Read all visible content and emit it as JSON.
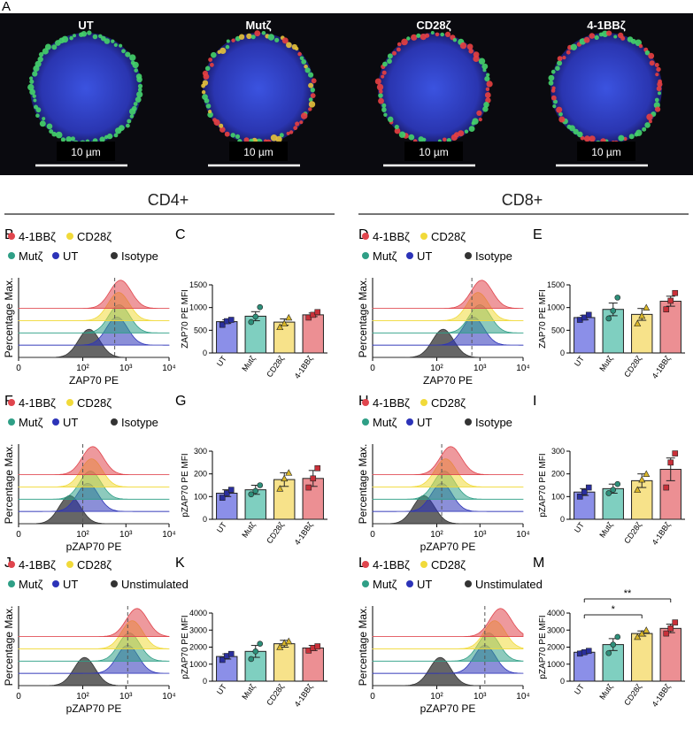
{
  "panel_a": {
    "letter": "A",
    "scale_text": "10 µm",
    "cells": [
      "UT",
      "Mutζ",
      "CD28ζ",
      "4-1BBζ"
    ]
  },
  "colors": {
    "bbz": "#e0454d",
    "cd28": "#f1da3a",
    "mut": "#2f9f86",
    "ut": "#2c33b8",
    "iso": "#333333",
    "bar_ut": "#8b8fe8",
    "bar_mut": "#7fcfc0",
    "bar_cd28": "#f7e28a",
    "bar_bbz": "#ec8f93"
  },
  "sections": {
    "cd4": "CD4+",
    "cd8": "CD8+"
  },
  "common": {
    "hist_ylabel": "Percentage Max.",
    "hist_xticks": [
      "0",
      "10²",
      "10³",
      "10⁴"
    ],
    "bar_categories": [
      "UT",
      "Mutζ",
      "CD28ζ",
      "4-1BBζ"
    ]
  },
  "chart_data": [
    {
      "type": "area",
      "panel": "B",
      "legend": [
        "4-1BBζ",
        "CD28ζ",
        "Mutζ",
        "UT",
        "Isotype"
      ],
      "xlabel": "ZAP70 PE",
      "ylabel": "Percentage Max.",
      "xscale": "biexponential",
      "xticks": [
        "0",
        "10²",
        "10³",
        "10⁴"
      ],
      "series": [
        {
          "name": "4-1BBζ",
          "peak": 750
        },
        {
          "name": "CD28ζ",
          "peak": 680
        },
        {
          "name": "Mutζ",
          "peak": 700
        },
        {
          "name": "UT",
          "peak": 620
        },
        {
          "name": "Isotype",
          "peak": 140
        }
      ],
      "dashed_line_x": 550
    },
    {
      "type": "bar",
      "panel": "C",
      "title": "",
      "ylabel": "ZAP70 PE MFI",
      "categories": [
        "UT",
        "Mutζ",
        "CD28ζ",
        "4-1BBζ"
      ],
      "values": [
        690,
        810,
        680,
        840
      ],
      "errors": [
        40,
        100,
        70,
        40
      ],
      "points": [
        [
          620,
          700,
          730
        ],
        [
          680,
          800,
          1010
        ],
        [
          570,
          650,
          780
        ],
        [
          780,
          840,
          900
        ]
      ],
      "ylim": [
        0,
        1500
      ],
      "yticks": [
        "0",
        "500",
        "1000",
        "1500"
      ]
    },
    {
      "type": "area",
      "panel": "D",
      "legend": [
        "4-1BBζ",
        "CD28ζ",
        "Mutζ",
        "UT",
        "Isotype"
      ],
      "xlabel": "ZAP70 PE",
      "ylabel": "Percentage Max.",
      "xscale": "biexponential",
      "xticks": [
        "0",
        "10²",
        "10³",
        "10⁴"
      ],
      "series": [
        {
          "name": "4-1BBζ",
          "peak": 1100
        },
        {
          "name": "CD28ζ",
          "peak": 900
        },
        {
          "name": "Mutζ",
          "peak": 1000
        },
        {
          "name": "UT",
          "peak": 700
        },
        {
          "name": "Isotype",
          "peak": 140
        }
      ],
      "dashed_line_x": 650
    },
    {
      "type": "bar",
      "panel": "E",
      "title": "",
      "ylabel": "ZAP70 PE MFI",
      "categories": [
        "UT",
        "Mutζ",
        "CD28ζ",
        "4-1BBζ"
      ],
      "values": [
        780,
        960,
        850,
        1140
      ],
      "errors": [
        50,
        140,
        130,
        110
      ],
      "points": [
        [
          730,
          780,
          840
        ],
        [
          760,
          930,
          1220
        ],
        [
          650,
          820,
          1000
        ],
        [
          960,
          1150,
          1320
        ]
      ],
      "ylim": [
        0,
        1500
      ],
      "yticks": [
        "0",
        "500",
        "1000",
        "1500"
      ]
    },
    {
      "type": "area",
      "panel": "F",
      "legend": [
        "4-1BBζ",
        "CD28ζ",
        "Mutζ",
        "UT",
        "Isotype"
      ],
      "xlabel": "pZAP70 PE",
      "ylabel": "Percentage Max.",
      "xscale": "biexponential",
      "xticks": [
        "0",
        "10²",
        "10³",
        "10⁴"
      ],
      "series": [
        {
          "name": "4-1BBζ",
          "peak": 170
        },
        {
          "name": "CD28ζ",
          "peak": 160
        },
        {
          "name": "Mutζ",
          "peak": 150
        },
        {
          "name": "UT",
          "peak": 130
        },
        {
          "name": "Isotype",
          "peak": 50
        }
      ],
      "dashed_line_x": 100
    },
    {
      "type": "bar",
      "panel": "G",
      "title": "",
      "ylabel": "pZAP70 PE MFI",
      "categories": [
        "UT",
        "Mutζ",
        "CD28ζ",
        "4-1BBζ"
      ],
      "values": [
        115,
        130,
        175,
        180
      ],
      "errors": [
        15,
        20,
        30,
        35
      ],
      "points": [
        [
          95,
          115,
          130
        ],
        [
          110,
          125,
          150
        ],
        [
          135,
          180,
          205
        ],
        [
          140,
          180,
          225
        ]
      ],
      "ylim": [
        0,
        300
      ],
      "yticks": [
        "0",
        "100",
        "200",
        "300"
      ]
    },
    {
      "type": "area",
      "panel": "H",
      "legend": [
        "4-1BBζ",
        "CD28ζ",
        "Mutζ",
        "UT",
        "Isotype"
      ],
      "xlabel": "pZAP70 PE",
      "ylabel": "Percentage Max.",
      "xscale": "biexponential",
      "xticks": [
        "0",
        "10²",
        "10³",
        "10⁴"
      ],
      "series": [
        {
          "name": "4-1BBζ",
          "peak": 210
        },
        {
          "name": "CD28ζ",
          "peak": 160
        },
        {
          "name": "Mutζ",
          "peak": 150
        },
        {
          "name": "UT",
          "peak": 130
        },
        {
          "name": "Isotype",
          "peak": 50
        }
      ],
      "dashed_line_x": 130
    },
    {
      "type": "bar",
      "panel": "I",
      "title": "",
      "ylabel": "pZAP70 PE MFI",
      "categories": [
        "UT",
        "Mutζ",
        "CD28ζ",
        "4-1BBζ"
      ],
      "values": [
        120,
        135,
        170,
        220
      ],
      "errors": [
        15,
        20,
        30,
        50
      ],
      "points": [
        [
          100,
          120,
          140
        ],
        [
          115,
          130,
          155
        ],
        [
          130,
          175,
          200
        ],
        [
          140,
          250,
          290
        ]
      ],
      "ylim": [
        0,
        300
      ],
      "yticks": [
        "0",
        "100",
        "200",
        "300"
      ]
    },
    {
      "type": "area",
      "panel": "J",
      "legend": [
        "4-1BBζ",
        "CD28ζ",
        "Mutζ",
        "UT",
        "Unstimulated"
      ],
      "xlabel": "pZAP70 PE",
      "ylabel": "Percentage Max.",
      "xscale": "biexponential",
      "xticks": [
        "0",
        "10²",
        "10³",
        "10⁴"
      ],
      "series": [
        {
          "name": "4-1BBζ",
          "peak": 1800
        },
        {
          "name": "CD28ζ",
          "peak": 1400
        },
        {
          "name": "Mutζ",
          "peak": 1200
        },
        {
          "name": "UT",
          "peak": 1100
        },
        {
          "name": "Unstimulated",
          "peak": 110
        }
      ],
      "dashed_line_x": 1100
    },
    {
      "type": "bar",
      "panel": "K",
      "title": "",
      "ylabel": "pZAP70 PE MFI",
      "categories": [
        "UT",
        "Mutζ",
        "CD28ζ",
        "4-1BBζ"
      ],
      "values": [
        1450,
        1750,
        2200,
        1950
      ],
      "errors": [
        150,
        350,
        200,
        150
      ],
      "points": [
        [
          1250,
          1480,
          1600
        ],
        [
          1300,
          1750,
          2200
        ],
        [
          2000,
          2250,
          2350
        ],
        [
          1800,
          1950,
          2050
        ]
      ],
      "ylim": [
        0,
        4000
      ],
      "yticks": [
        "0",
        "1000",
        "2000",
        "3000",
        "4000"
      ]
    },
    {
      "type": "area",
      "panel": "L",
      "legend": [
        "4-1BBζ",
        "CD28ζ",
        "Mutζ",
        "UT",
        "Unstimulated"
      ],
      "xlabel": "pZAP70 PE",
      "ylabel": "Percentage Max.",
      "xscale": "biexponential",
      "xticks": [
        "0",
        "10²",
        "10³",
        "10⁴"
      ],
      "series": [
        {
          "name": "4-1BBζ",
          "peak": 3000
        },
        {
          "name": "CD28ζ",
          "peak": 2200
        },
        {
          "name": "Mutζ",
          "peak": 1600
        },
        {
          "name": "UT",
          "peak": 1300
        },
        {
          "name": "Unstimulated",
          "peak": 120
        }
      ],
      "dashed_line_x": 1300
    },
    {
      "type": "bar",
      "panel": "M",
      "title": "",
      "ylabel": "pZAP70 PE MFI",
      "categories": [
        "UT",
        "Mutζ",
        "CD28ζ",
        "4-1BBζ"
      ],
      "values": [
        1700,
        2150,
        2800,
        3100
      ],
      "errors": [
        80,
        350,
        150,
        250
      ],
      "points": [
        [
          1620,
          1700,
          1780
        ],
        [
          1650,
          2150,
          2600
        ],
        [
          2600,
          2800,
          3000
        ],
        [
          2800,
          3100,
          3450
        ]
      ],
      "ylim": [
        0,
        4000
      ],
      "yticks": [
        "0",
        "1000",
        "2000",
        "3000",
        "4000"
      ],
      "significance": [
        {
          "from": "UT",
          "to": "CD28ζ",
          "label": "*"
        },
        {
          "from": "UT",
          "to": "4-1BBζ",
          "label": "**"
        }
      ]
    }
  ]
}
